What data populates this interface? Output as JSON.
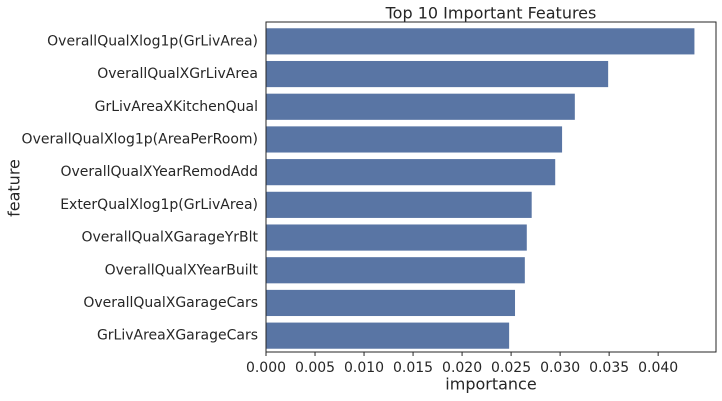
{
  "chart_data": {
    "type": "barh",
    "title": "Top 10 Important Features",
    "xlabel": "importance",
    "ylabel": "feature",
    "categories": [
      "OverallQualXlog1p(GrLivArea)",
      "OverallQualXGrLivArea",
      "GrLivAreaXKitchenQual",
      "OverallQualXlog1p(AreaPerRoom)",
      "OverallQualXYearRemodAdd",
      "ExterQualXlog1p(GrLivArea)",
      "OverallQualXGarageYrBlt",
      "OverallQualXYearBuilt",
      "OverallQualXGarageCars",
      "GrLivAreaXGarageCars"
    ],
    "values": [
      0.0437,
      0.0349,
      0.0315,
      0.0302,
      0.0295,
      0.0271,
      0.0266,
      0.0264,
      0.0254,
      0.0248
    ],
    "color": "#5975a4",
    "xlim": [
      0,
      0.0459
    ],
    "xticks": [
      {
        "value": 0,
        "label": "0.000"
      },
      {
        "value": 0.005,
        "label": "0.005"
      },
      {
        "value": 0.01,
        "label": "0.010"
      },
      {
        "value": 0.015,
        "label": "0.015"
      },
      {
        "value": 0.02,
        "label": "0.020"
      },
      {
        "value": 0.025,
        "label": "0.025"
      },
      {
        "value": 0.03,
        "label": "0.030"
      },
      {
        "value": 0.035,
        "label": "0.035"
      },
      {
        "value": 0.04,
        "label": "0.040"
      }
    ],
    "grid": false
  }
}
